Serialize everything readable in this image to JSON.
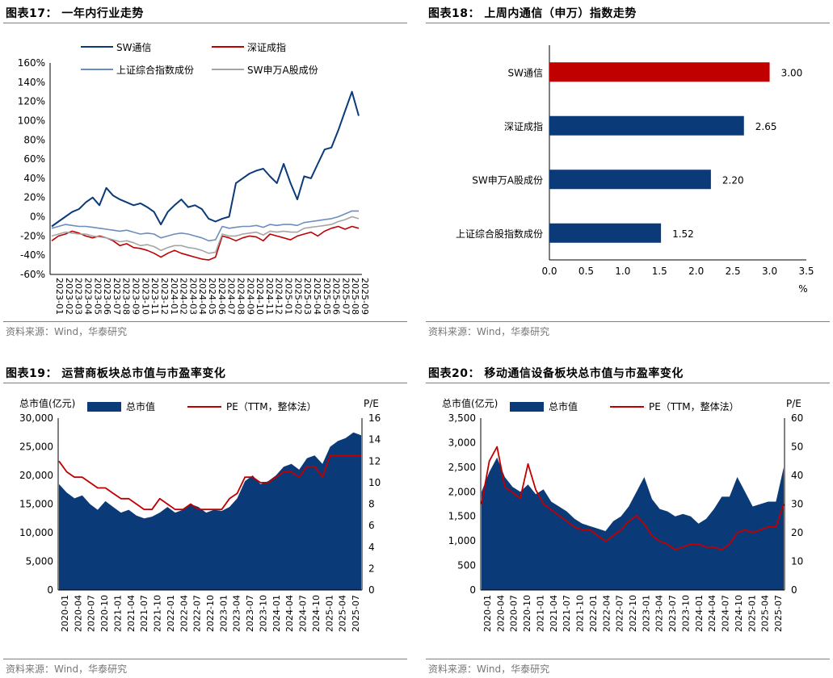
{
  "source_text": "资料来源：Wind，华泰研究",
  "colors": {
    "navy": "#0b3a78",
    "red": "#c00000",
    "steel": "#6c8ebf",
    "gray": "#a5a5a5",
    "rule": "#7f7f7f"
  },
  "chart_data": [
    {
      "id": "fig17",
      "title": "图表17：  一年内行业走势",
      "type": "line",
      "x_ticks": [
        "2023-01",
        "2023-02",
        "2023-03",
        "2023-04",
        "2023-05",
        "2023-06",
        "2023-07",
        "2023-08",
        "2023-09",
        "2023-10",
        "2023-11",
        "2023-12",
        "2024-01",
        "2024-02",
        "2024-03",
        "2024-04",
        "2024-05",
        "2024-06",
        "2024-07",
        "2024-08",
        "2024-09",
        "2024-10",
        "2024-11",
        "2024-12",
        "2025-01",
        "2025-02",
        "2025-03",
        "2025-04",
        "2025-05",
        "2025-06",
        "2025-07",
        "2025-08",
        "2025-09"
      ],
      "ylim": [
        -60,
        160
      ],
      "y_ticks": [
        "-60%",
        "-40%",
        "-20%",
        "0%",
        "20%",
        "40%",
        "60%",
        "80%",
        "100%",
        "120%",
        "140%",
        "160%"
      ],
      "series": [
        {
          "name": "SW通信",
          "color": "#0b3a78",
          "values": [
            -10,
            -5,
            0,
            5,
            8,
            15,
            20,
            12,
            30,
            22,
            18,
            15,
            12,
            14,
            10,
            5,
            -8,
            5,
            12,
            18,
            10,
            12,
            8,
            -2,
            -5,
            -2,
            0,
            35,
            40,
            45,
            48,
            50,
            42,
            35,
            55,
            35,
            18,
            42,
            40,
            55,
            70,
            72,
            90,
            110,
            130,
            105
          ]
        },
        {
          "name": "深证成指",
          "color": "#c00000",
          "values": [
            -25,
            -20,
            -18,
            -15,
            -17,
            -20,
            -22,
            -20,
            -22,
            -25,
            -30,
            -28,
            -32,
            -33,
            -35,
            -38,
            -42,
            -38,
            -35,
            -38,
            -40,
            -42,
            -44,
            -45,
            -42,
            -20,
            -22,
            -25,
            -22,
            -20,
            -21,
            -25,
            -18,
            -20,
            -22,
            -24,
            -20,
            -18,
            -16,
            -20,
            -15,
            -12,
            -10,
            -13,
            -10,
            -12
          ]
        },
        {
          "name": "上证综合指数成份",
          "color": "#6c8ebf",
          "values": [
            -12,
            -10,
            -8,
            -9,
            -10,
            -10,
            -11,
            -12,
            -13,
            -14,
            -15,
            -14,
            -16,
            -18,
            -17,
            -18,
            -22,
            -20,
            -18,
            -17,
            -18,
            -20,
            -22,
            -25,
            -24,
            -10,
            -12,
            -11,
            -10,
            -10,
            -9,
            -11,
            -8,
            -9,
            -8,
            -8,
            -9,
            -6,
            -5,
            -4,
            -3,
            -2,
            0,
            3,
            6,
            6
          ]
        },
        {
          "name": "SW申万A股成份",
          "color": "#a5a5a5",
          "values": [
            -20,
            -18,
            -16,
            -17,
            -18,
            -18,
            -20,
            -21,
            -22,
            -24,
            -26,
            -25,
            -27,
            -30,
            -29,
            -31,
            -35,
            -32,
            -30,
            -30,
            -32,
            -33,
            -35,
            -38,
            -37,
            -18,
            -20,
            -20,
            -18,
            -17,
            -16,
            -19,
            -15,
            -16,
            -15,
            -16,
            -16,
            -12,
            -11,
            -10,
            -9,
            -8,
            -5,
            -3,
            0,
            -2
          ]
        }
      ]
    },
    {
      "id": "fig18",
      "title": "图表18：  上周内通信（申万）指数走势",
      "type": "bar",
      "orientation": "horizontal",
      "categories": [
        "SW通信",
        "深证成指",
        "SW申万A股成份",
        "上证综合股指数成份"
      ],
      "values": [
        3.0,
        2.65,
        2.2,
        1.52
      ],
      "value_labels": [
        "3.00",
        "2.65",
        "2.20",
        "1.52"
      ],
      "bar_colors": [
        "#c00000",
        "#0b3a78",
        "#0b3a78",
        "#0b3a78"
      ],
      "xlim": [
        0,
        3.5
      ],
      "x_ticks": [
        "0.0",
        "0.5",
        "1.0",
        "1.5",
        "2.0",
        "2.5",
        "3.0",
        "3.5"
      ],
      "xlabel": "%"
    },
    {
      "id": "fig19",
      "title": "图表19：  运营商板块总市值与市盈率变化",
      "type": "area",
      "legend": [
        "总市值",
        "PE（TTM，整体法）"
      ],
      "y1label": "总市值(亿元)",
      "y2label": "P/E",
      "y1lim": [
        0,
        30000
      ],
      "y1_ticks": [
        "0",
        "5,000",
        "10,000",
        "15,000",
        "20,000",
        "25,000",
        "30,000"
      ],
      "y2lim": [
        0,
        16
      ],
      "y2_ticks": [
        "0",
        "2",
        "4",
        "6",
        "8",
        "10",
        "12",
        "14",
        "16"
      ],
      "x_ticks": [
        "2020-01",
        "2020-04",
        "2020-07",
        "2020-10",
        "2021-01",
        "2021-04",
        "2021-07",
        "2021-10",
        "2022-01",
        "2022-04",
        "2022-07",
        "2022-10",
        "2023-01",
        "2023-04",
        "2023-07",
        "2023-10",
        "2024-01",
        "2024-04",
        "2024-07",
        "2024-10",
        "2025-01",
        "2025-04",
        "2025-07"
      ],
      "series": [
        {
          "name": "总市值",
          "axis": "left",
          "color": "#0b3a78",
          "values": [
            18500,
            17000,
            16000,
            16500,
            15000,
            14000,
            15500,
            14500,
            13500,
            14000,
            13000,
            12500,
            12800,
            13500,
            14500,
            13500,
            14000,
            15000,
            14500,
            13500,
            14000,
            13800,
            14500,
            16000,
            19000,
            20000,
            18500,
            19000,
            20000,
            21500,
            22000,
            21000,
            23000,
            23500,
            22000,
            25000,
            26000,
            26500,
            27500,
            27000
          ]
        },
        {
          "name": "PE（TTM，整体法）",
          "axis": "right",
          "color": "#c00000",
          "values": [
            12,
            11,
            10.5,
            10.5,
            10,
            9.5,
            9.5,
            9,
            8.5,
            8.5,
            8,
            7.5,
            7.5,
            8.5,
            8,
            7.5,
            7.5,
            8,
            7.5,
            7.5,
            7.5,
            7.5,
            8.5,
            9,
            10.5,
            10.5,
            10,
            10,
            10.5,
            11,
            11,
            10.5,
            11.5,
            11.5,
            10.5,
            12.5,
            12.5,
            12.5,
            12.5,
            12.5
          ]
        }
      ]
    },
    {
      "id": "fig20",
      "title": "图表20：  移动通信设备板块总市值与市盈率变化",
      "type": "area",
      "legend": [
        "总市值",
        "PE（TTM，整体法）"
      ],
      "y1label": "总市值(亿元)",
      "y2label": "P/E",
      "y1lim": [
        0,
        3500
      ],
      "y1_ticks": [
        "0",
        "500",
        "1,000",
        "1,500",
        "2,000",
        "2,500",
        "3,000",
        "3,500"
      ],
      "y2lim": [
        0,
        60
      ],
      "y2_ticks": [
        "0",
        "10",
        "20",
        "30",
        "40",
        "50",
        "60"
      ],
      "x_ticks": [
        "2020-01",
        "2020-04",
        "2020-07",
        "2020-10",
        "2021-01",
        "2021-04",
        "2021-07",
        "2021-10",
        "2022-01",
        "2022-04",
        "2022-07",
        "2022-10",
        "2023-01",
        "2023-04",
        "2023-07",
        "2023-10",
        "2024-01",
        "2024-04",
        "2024-07",
        "2024-10",
        "2025-01",
        "2025-04",
        "2025-07"
      ],
      "series": [
        {
          "name": "总市值",
          "axis": "left",
          "color": "#0b3a78",
          "values": [
            2000,
            2400,
            2700,
            2300,
            2100,
            2000,
            2150,
            1950,
            2050,
            1800,
            1700,
            1600,
            1450,
            1350,
            1300,
            1250,
            1200,
            1400,
            1500,
            1700,
            2000,
            2300,
            1850,
            1650,
            1600,
            1500,
            1550,
            1500,
            1350,
            1450,
            1650,
            1900,
            1900,
            2300,
            2000,
            1700,
            1750,
            1800,
            1800,
            2500
          ]
        },
        {
          "name": "PE（TTM，整体法）",
          "axis": "right",
          "color": "#c00000",
          "values": [
            30,
            45,
            50,
            36,
            34,
            32,
            44,
            35,
            30,
            28,
            26,
            24,
            22,
            21,
            21,
            19,
            17,
            19,
            21,
            24,
            26,
            23,
            19,
            17,
            16,
            14,
            15,
            16,
            16,
            15,
            15,
            14,
            16,
            20,
            21,
            20,
            21,
            22,
            22,
            30
          ]
        }
      ]
    }
  ]
}
